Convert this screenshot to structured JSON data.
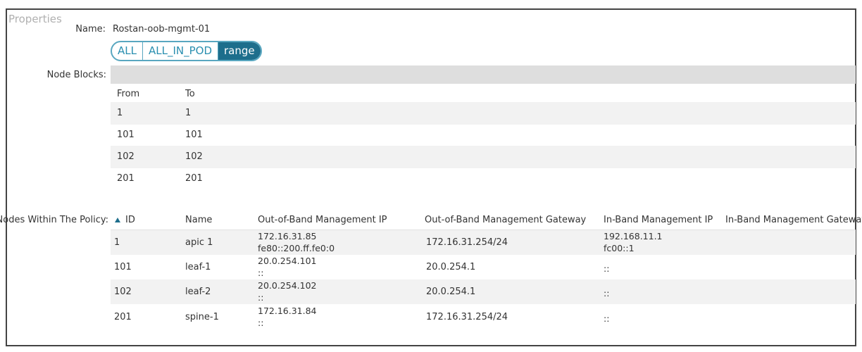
{
  "title": "Properties",
  "name": {
    "label": "Name:",
    "value": "Rostan-oob-mgmt-01"
  },
  "node_selector": {
    "options": [
      "ALL",
      "ALL_IN_POD",
      "range"
    ],
    "selected": 2
  },
  "node_blocks": {
    "label": "Node Blocks:",
    "columns": [
      "From",
      "To"
    ],
    "rows": [
      [
        "1",
        "1"
      ],
      [
        "101",
        "101"
      ],
      [
        "102",
        "102"
      ],
      [
        "201",
        "201"
      ]
    ]
  },
  "nodes": {
    "label": "Nodes Within The Policy:",
    "columns": [
      "ID",
      "Name",
      "Out-of-Band Management IP",
      "Out-of-Band Management Gateway",
      "In-Band Management IP",
      "In-Band Management Gateway"
    ],
    "rows": [
      {
        "id": "1",
        "name": "apic 1",
        "oob_ip": [
          "172.16.31.85",
          "fe80::200.ff.fe0:0"
        ],
        "oob_gateway": "172.16.31.254/24",
        "inb_ip": [
          "192.168.11.1",
          "fc00::1"
        ]
      },
      {
        "id": "101",
        "name": "leaf-1",
        "oob_ip": [
          "20.0.254.101",
          "::"
        ],
        "oob_gateway": "20.0.254.1",
        "inb_ip": [
          "::"
        ]
      },
      {
        "id": "102",
        "name": "leaf-2",
        "oob_ip": [
          "20.0.254.102",
          "::"
        ],
        "oob_gateway": "20.0.254.1",
        "inb_ip": [
          "::"
        ]
      },
      {
        "id": "201",
        "name": "spine-1",
        "oob_ip": [
          "172.16.31.84",
          "::"
        ],
        "oob_gateway": "172.16.31.254/24",
        "inb_ip": [
          "::"
        ]
      }
    ]
  }
}
